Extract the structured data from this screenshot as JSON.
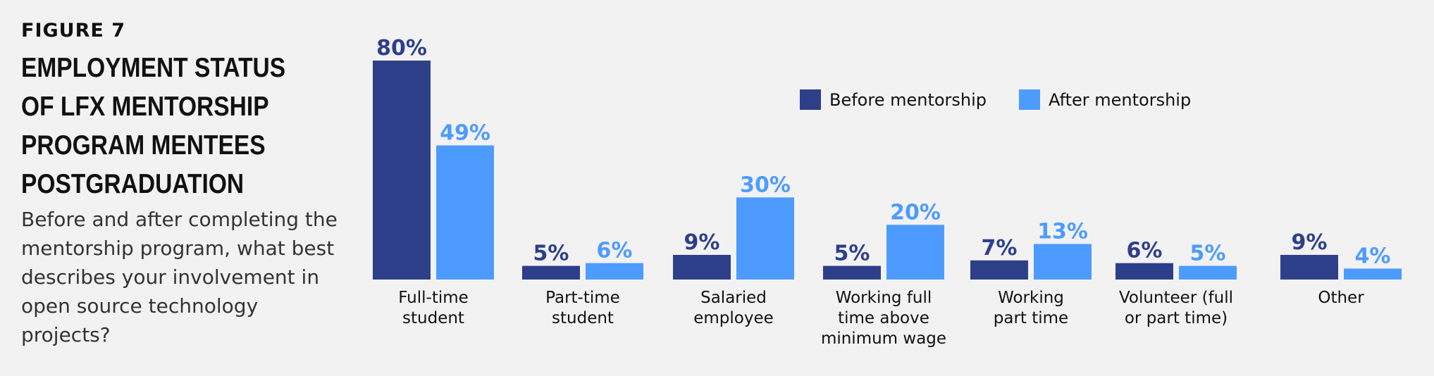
{
  "figure_label": "FIGURE 7",
  "chart_data": {
    "type": "bar",
    "title": "EMPLOYMENT STATUS OF LFX MENTORSHIP PROGRAM MENTEES POSTGRADUATION",
    "subtitle": "Before and after completing the mentorship program, what best describes your involvement in open source technology projects?",
    "categories": [
      [
        "Full-time",
        "student"
      ],
      [
        "Part-time",
        "student"
      ],
      [
        "Salaried",
        "employee"
      ],
      [
        "Working full",
        "time above",
        "minimum wage"
      ],
      [
        "Working",
        "part time"
      ],
      [
        "Volunteer (full",
        "or part time)"
      ],
      [
        "Other"
      ]
    ],
    "series": [
      {
        "name": "Before mentorship",
        "values": [
          80,
          5,
          9,
          5,
          7,
          6,
          9
        ],
        "color": "#2e3f8a"
      },
      {
        "name": "After mentorship",
        "values": [
          49,
          6,
          30,
          20,
          13,
          5,
          4
        ],
        "color": "#4d9bff"
      }
    ],
    "value_suffix": "%",
    "ylim": [
      0,
      80
    ],
    "legend_position": "top-center",
    "grid": false
  }
}
